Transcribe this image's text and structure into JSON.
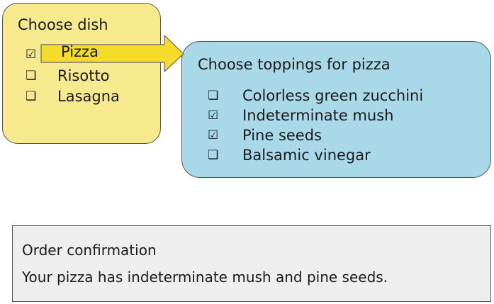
{
  "dish_panel": {
    "title": "Choose dish",
    "options": [
      {
        "label": "Pizza",
        "checked": true,
        "box": "☑"
      },
      {
        "label": "Risotto",
        "checked": false,
        "box": "❏"
      },
      {
        "label": "Lasagna",
        "checked": false,
        "box": "❏"
      }
    ]
  },
  "toppings_panel": {
    "title": "Choose toppings for pizza",
    "options": [
      {
        "label": "Colorless green zucchini",
        "checked": false,
        "box": "❏"
      },
      {
        "label": "Indeterminate mush",
        "checked": true,
        "box": "☑"
      },
      {
        "label": "Pine seeds",
        "checked": true,
        "box": "☑"
      },
      {
        "label": "Balsamic vinegar",
        "checked": false,
        "box": "❏"
      }
    ]
  },
  "confirmation": {
    "title": "Order confirmation",
    "text": "Your pizza has indeterminate mush and pine seeds."
  },
  "colors": {
    "dish_bg": "#f7e98e",
    "toppings_bg": "#a9d9e8",
    "confirm_bg": "#eeeeee",
    "arrow_fill": "#f5dc2a",
    "border": "#555555"
  },
  "icons": {
    "connector": "arrow-right-icon"
  }
}
